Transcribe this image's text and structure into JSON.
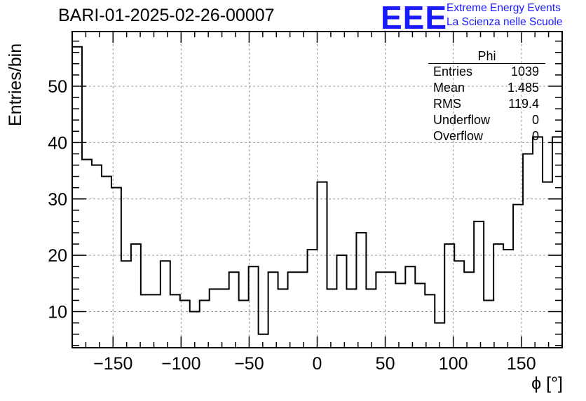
{
  "title": "BARI-01-2025-02-26-00007",
  "logo": {
    "mark": "EEE",
    "line1": "Extreme Energy Events",
    "line2": "La Scienza nelle Scuole",
    "color": "#1a1aff"
  },
  "stats": {
    "name": "Phi",
    "rows": [
      {
        "key": "Entries",
        "value": "1039"
      },
      {
        "key": "Mean",
        "value": "1.485"
      },
      {
        "key": "RMS",
        "value": "119.4"
      },
      {
        "key": "Underflow",
        "value": "0"
      },
      {
        "key": "Overflow",
        "value": "0"
      }
    ]
  },
  "chart_data": {
    "type": "bar",
    "style": "step-histogram",
    "title": "BARI-01-2025-02-26-00007",
    "xlabel": "ϕ [°]",
    "ylabel": "Entries/bin",
    "xlim": [
      -180,
      180
    ],
    "ylim": [
      3.6,
      59.7
    ],
    "xticks": [
      -150,
      -100,
      -50,
      0,
      50,
      100,
      150
    ],
    "yticks": [
      10,
      20,
      30,
      40,
      50
    ],
    "grid": true,
    "bin_width": 7.2,
    "bin_edges_start": -180,
    "values": [
      57,
      37,
      36,
      34,
      32,
      19,
      22,
      13,
      13,
      19,
      13,
      12,
      10,
      12,
      14,
      14,
      17,
      12,
      18,
      6,
      17,
      14,
      17,
      17,
      21,
      33,
      14,
      20,
      14,
      24,
      14,
      17,
      17,
      15,
      18,
      15,
      13,
      8,
      22,
      19,
      17,
      26,
      12,
      22,
      21,
      29,
      38,
      41,
      33,
      41
    ]
  }
}
